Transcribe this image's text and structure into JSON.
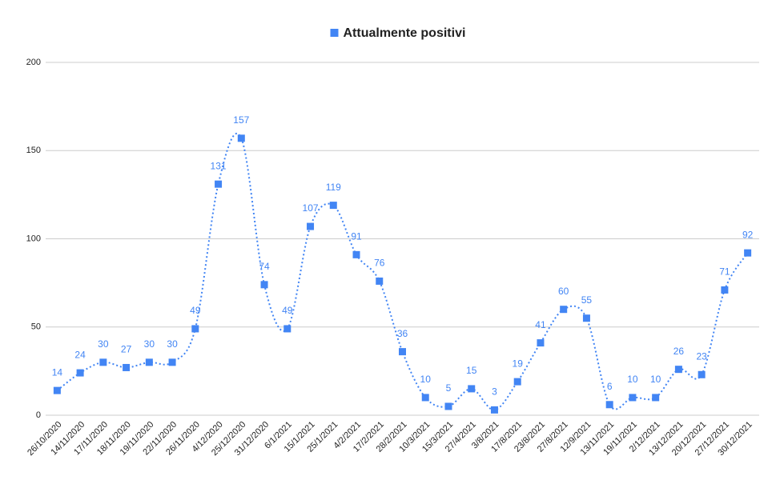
{
  "chart_data": {
    "type": "line",
    "categories": [
      "26/10/2020",
      "14/11/2020",
      "17/11/2020",
      "18/11/2020",
      "19/11/2020",
      "22/11/2020",
      "26/11/2020",
      "4/12/2020",
      "25/12/2020",
      "31/12/2020",
      "6/1/2021",
      "15/1/2021",
      "25/1/2021",
      "4/2/2021",
      "17/2/2021",
      "28/2/2021",
      "10/3/2021",
      "15/3/2021",
      "27/4/2021",
      "3/8/2021",
      "17/8/2021",
      "23/8/2021",
      "27/8/2021",
      "12/9/2021",
      "13/11/2021",
      "19/11/2021",
      "2/12/2021",
      "13/12/2021",
      "20/12/2021",
      "27/12/2021",
      "30/12/2021"
    ],
    "series": [
      {
        "name": "Attualmente positivi",
        "color": "#4285f4",
        "values": [
          14,
          24,
          30,
          27,
          30,
          30,
          49,
          131,
          157,
          74,
          49,
          107,
          119,
          91,
          76,
          36,
          10,
          5,
          15,
          3,
          19,
          41,
          60,
          55,
          6,
          10,
          10,
          26,
          23,
          71,
          92
        ]
      }
    ],
    "ylim": [
      0,
      200
    ],
    "yticks": [
      0,
      50,
      100,
      150,
      200
    ],
    "grid": true,
    "legend": "top"
  }
}
